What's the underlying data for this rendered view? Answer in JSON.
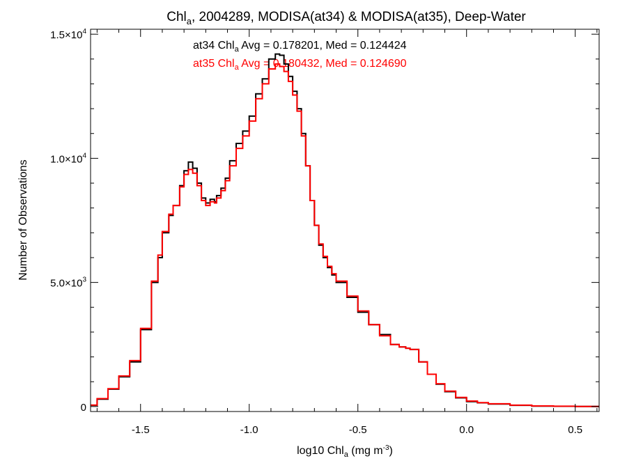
{
  "chart_data": {
    "type": "line",
    "title": {
      "pre": "Chl",
      "sub": "a",
      "post": ", 2004289, MODISA(at34) & MODISA(at35), Deep-Water"
    },
    "xlabel": {
      "pre": "log10 Chl",
      "sub": "a",
      "mid": " (mg m",
      "sup": "-3",
      "post": ")"
    },
    "ylabel": "Number of Observations",
    "xlim": [
      -1.73,
      0.61
    ],
    "ylim": [
      -200,
      15200
    ],
    "x_ticks": [
      {
        "value": -1.5,
        "label": "-1.5"
      },
      {
        "value": -1.0,
        "label": "-1.0"
      },
      {
        "value": -0.5,
        "label": "-0.5"
      },
      {
        "value": 0.0,
        "label": "0.0"
      },
      {
        "value": 0.5,
        "label": "0.5"
      }
    ],
    "y_ticks": [
      {
        "value": 0,
        "base": "0",
        "exp": ""
      },
      {
        "value": 5000,
        "base": "5.0×10",
        "exp": "3"
      },
      {
        "value": 10000,
        "base": "1.0×10",
        "exp": "4"
      },
      {
        "value": 15000,
        "base": "1.5×10",
        "exp": "4"
      }
    ],
    "annotations": [
      {
        "pre": "at34 Chl",
        "sub": "a",
        "post": " Avg = 0.178201, Med = 0.124424",
        "color": "#000000"
      },
      {
        "pre": "at35 Chl",
        "sub": "a",
        "post": " Avg = 0.180432, Med = 0.124690",
        "color": "#ff0000"
      }
    ],
    "series": [
      {
        "color": "#000000",
        "step": "histogram",
        "x": [
          -1.73,
          -1.7,
          -1.65,
          -1.6,
          -1.55,
          -1.5,
          -1.45,
          -1.42,
          -1.4,
          -1.37,
          -1.35,
          -1.32,
          -1.3,
          -1.28,
          -1.26,
          -1.24,
          -1.22,
          -1.2,
          -1.18,
          -1.16,
          -1.15,
          -1.13,
          -1.11,
          -1.09,
          -1.06,
          -1.03,
          -1.0,
          -0.97,
          -0.94,
          -0.91,
          -0.88,
          -0.86,
          -0.84,
          -0.82,
          -0.8,
          -0.78,
          -0.76,
          -0.74,
          -0.72,
          -0.7,
          -0.68,
          -0.66,
          -0.64,
          -0.62,
          -0.6,
          -0.55,
          -0.5,
          -0.45,
          -0.4,
          -0.35,
          -0.31,
          -0.28,
          -0.26,
          -0.22,
          -0.18,
          -0.14,
          -0.1,
          -0.05,
          0.0,
          0.05,
          0.1,
          0.2,
          0.3,
          0.4,
          0.5,
          0.61
        ],
        "y": [
          50,
          300,
          700,
          1200,
          1800,
          3100,
          5000,
          6000,
          7000,
          7700,
          8100,
          8900,
          9500,
          9850,
          9600,
          9000,
          8400,
          8200,
          8350,
          8250,
          8500,
          8800,
          9200,
          9900,
          10600,
          11100,
          11700,
          12600,
          13200,
          14000,
          14200,
          14150,
          13800,
          13300,
          12700,
          12000,
          11000,
          9700,
          8300,
          7300,
          6500,
          6000,
          5600,
          5300,
          5000,
          4400,
          3800,
          3300,
          2900,
          2500,
          2400,
          2350,
          2300,
          1800,
          1300,
          900,
          600,
          350,
          200,
          150,
          100,
          50,
          20,
          10,
          5,
          0
        ]
      },
      {
        "color": "#ff0000",
        "step": "histogram",
        "x": [
          -1.73,
          -1.7,
          -1.65,
          -1.6,
          -1.55,
          -1.5,
          -1.45,
          -1.42,
          -1.4,
          -1.37,
          -1.35,
          -1.32,
          -1.3,
          -1.28,
          -1.26,
          -1.24,
          -1.22,
          -1.2,
          -1.18,
          -1.16,
          -1.15,
          -1.13,
          -1.11,
          -1.09,
          -1.06,
          -1.03,
          -1.0,
          -0.97,
          -0.94,
          -0.91,
          -0.88,
          -0.86,
          -0.84,
          -0.82,
          -0.8,
          -0.78,
          -0.76,
          -0.74,
          -0.72,
          -0.7,
          -0.68,
          -0.66,
          -0.64,
          -0.62,
          -0.6,
          -0.55,
          -0.5,
          -0.45,
          -0.4,
          -0.35,
          -0.31,
          -0.28,
          -0.26,
          -0.22,
          -0.18,
          -0.14,
          -0.1,
          -0.05,
          0.0,
          0.05,
          0.1,
          0.2,
          0.3,
          0.4,
          0.5,
          0.61
        ],
        "y": [
          60,
          320,
          720,
          1230,
          1850,
          3150,
          5050,
          6100,
          7050,
          7750,
          8100,
          8850,
          9350,
          9550,
          9400,
          8900,
          8300,
          8100,
          8250,
          8200,
          8400,
          8700,
          9100,
          9700,
          10400,
          10900,
          11500,
          12400,
          13000,
          13600,
          13800,
          13700,
          13500,
          13100,
          12550,
          11900,
          10900,
          9700,
          8300,
          7300,
          6550,
          6050,
          5650,
          5350,
          5050,
          4450,
          3850,
          3300,
          2850,
          2500,
          2400,
          2350,
          2300,
          1800,
          1300,
          920,
          620,
          370,
          220,
          160,
          110,
          55,
          25,
          12,
          6,
          0
        ]
      }
    ]
  }
}
